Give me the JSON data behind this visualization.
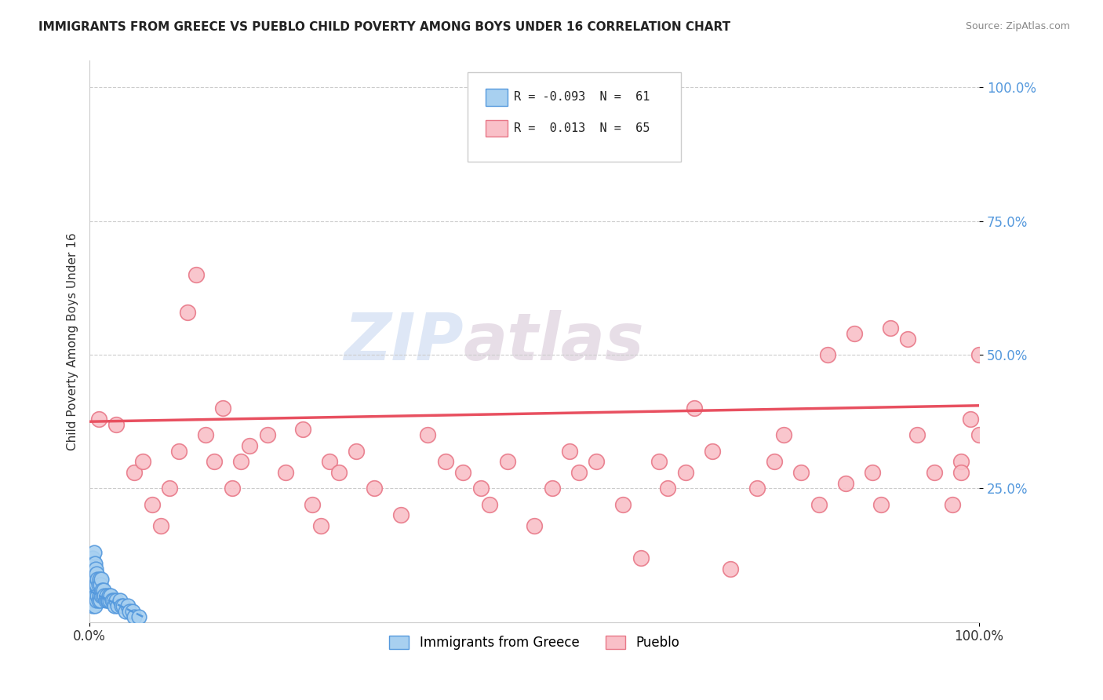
{
  "title": "IMMIGRANTS FROM GREECE VS PUEBLO CHILD POVERTY AMONG BOYS UNDER 16 CORRELATION CHART",
  "source": "Source: ZipAtlas.com",
  "ylabel": "Child Poverty Among Boys Under 16",
  "xlim": [
    0.0,
    1.0
  ],
  "ylim": [
    0.0,
    1.05
  ],
  "xtick_positions": [
    0.0,
    1.0
  ],
  "xtick_labels": [
    "0.0%",
    "100.0%"
  ],
  "ytick_positions": [
    0.25,
    0.5,
    0.75,
    1.0
  ],
  "ytick_labels": [
    "25.0%",
    "50.0%",
    "75.0%",
    "100.0%"
  ],
  "blue_R": "-0.093",
  "blue_N": "61",
  "pink_R": "0.013",
  "pink_N": "65",
  "blue_color": "#a8d0f0",
  "pink_color": "#f9c0c8",
  "blue_edge": "#5599dd",
  "pink_edge": "#e87888",
  "blue_label": "Immigrants from Greece",
  "pink_label": "Pueblo",
  "trend_blue_color": "#5599dd",
  "trend_pink_color": "#e85060",
  "watermark_zip": "ZIP",
  "watermark_atlas": "atlas",
  "blue_x": [
    0.001,
    0.001,
    0.002,
    0.002,
    0.002,
    0.003,
    0.003,
    0.003,
    0.003,
    0.004,
    0.004,
    0.004,
    0.005,
    0.005,
    0.005,
    0.005,
    0.006,
    0.006,
    0.006,
    0.006,
    0.007,
    0.007,
    0.007,
    0.008,
    0.008,
    0.008,
    0.009,
    0.009,
    0.01,
    0.01,
    0.011,
    0.011,
    0.012,
    0.012,
    0.013,
    0.013,
    0.014,
    0.015,
    0.016,
    0.017,
    0.018,
    0.019,
    0.02,
    0.021,
    0.022,
    0.023,
    0.024,
    0.025,
    0.027,
    0.028,
    0.03,
    0.032,
    0.034,
    0.036,
    0.038,
    0.04,
    0.043,
    0.045,
    0.048,
    0.05,
    0.055
  ],
  "blue_y": [
    0.05,
    0.08,
    0.04,
    0.07,
    0.1,
    0.03,
    0.06,
    0.09,
    0.12,
    0.05,
    0.08,
    0.11,
    0.04,
    0.06,
    0.09,
    0.13,
    0.03,
    0.06,
    0.08,
    0.11,
    0.05,
    0.07,
    0.1,
    0.04,
    0.07,
    0.09,
    0.05,
    0.08,
    0.04,
    0.07,
    0.05,
    0.08,
    0.04,
    0.07,
    0.05,
    0.08,
    0.06,
    0.05,
    0.06,
    0.05,
    0.04,
    0.05,
    0.04,
    0.04,
    0.05,
    0.04,
    0.05,
    0.04,
    0.04,
    0.03,
    0.04,
    0.03,
    0.04,
    0.03,
    0.03,
    0.02,
    0.03,
    0.02,
    0.02,
    0.01,
    0.01
  ],
  "pink_x": [
    0.01,
    0.03,
    0.05,
    0.06,
    0.07,
    0.08,
    0.09,
    0.1,
    0.11,
    0.12,
    0.13,
    0.14,
    0.15,
    0.16,
    0.17,
    0.18,
    0.2,
    0.22,
    0.24,
    0.25,
    0.26,
    0.27,
    0.28,
    0.3,
    0.32,
    0.35,
    0.38,
    0.4,
    0.42,
    0.44,
    0.45,
    0.47,
    0.5,
    0.52,
    0.54,
    0.55,
    0.57,
    0.6,
    0.62,
    0.64,
    0.65,
    0.67,
    0.68,
    0.7,
    0.72,
    0.75,
    0.77,
    0.78,
    0.8,
    0.82,
    0.83,
    0.85,
    0.86,
    0.88,
    0.89,
    0.9,
    0.92,
    0.93,
    0.95,
    0.97,
    0.98,
    0.99,
    1.0,
    1.0,
    0.98
  ],
  "pink_y": [
    0.38,
    0.37,
    0.28,
    0.3,
    0.22,
    0.18,
    0.25,
    0.32,
    0.58,
    0.65,
    0.35,
    0.3,
    0.4,
    0.25,
    0.3,
    0.33,
    0.35,
    0.28,
    0.36,
    0.22,
    0.18,
    0.3,
    0.28,
    0.32,
    0.25,
    0.2,
    0.35,
    0.3,
    0.28,
    0.25,
    0.22,
    0.3,
    0.18,
    0.25,
    0.32,
    0.28,
    0.3,
    0.22,
    0.12,
    0.3,
    0.25,
    0.28,
    0.4,
    0.32,
    0.1,
    0.25,
    0.3,
    0.35,
    0.28,
    0.22,
    0.5,
    0.26,
    0.54,
    0.28,
    0.22,
    0.55,
    0.53,
    0.35,
    0.28,
    0.22,
    0.3,
    0.38,
    0.5,
    0.35,
    0.28
  ],
  "pink_trend_x": [
    0.0,
    1.0
  ],
  "pink_trend_y": [
    0.375,
    0.405
  ],
  "blue_trend_x": [
    0.0,
    0.06
  ],
  "blue_trend_y": [
    0.058,
    0.01
  ]
}
